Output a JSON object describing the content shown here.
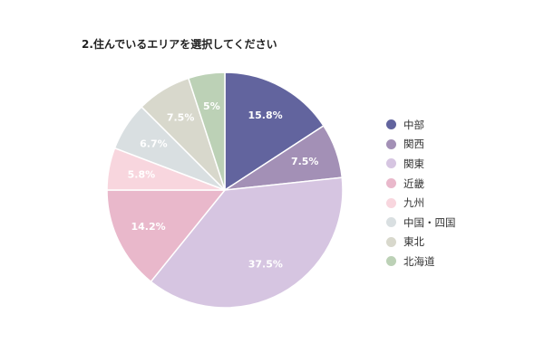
{
  "chart_data": {
    "type": "pie",
    "title": "2.住んでいるエリアを選択してください",
    "categories": [
      "中部",
      "関西",
      "関東",
      "近畿",
      "九州",
      "中国・四国",
      "東北",
      "北海道"
    ],
    "values": [
      15.8,
      7.5,
      37.5,
      14.2,
      5.8,
      6.7,
      7.5,
      5
    ],
    "value_labels": [
      "15.8%",
      "7.5%",
      "37.5%",
      "14.2%",
      "5.8%",
      "6.7%",
      "7.5%",
      "5%"
    ],
    "colors": [
      "#62649e",
      "#a390b6",
      "#d6c5e1",
      "#e9b8cb",
      "#f8d6de",
      "#d9dfe1",
      "#d8d8cc",
      "#bcd1b6"
    ],
    "legend": "right",
    "start_angle": "12 o'clock",
    "direction": "clockwise"
  }
}
